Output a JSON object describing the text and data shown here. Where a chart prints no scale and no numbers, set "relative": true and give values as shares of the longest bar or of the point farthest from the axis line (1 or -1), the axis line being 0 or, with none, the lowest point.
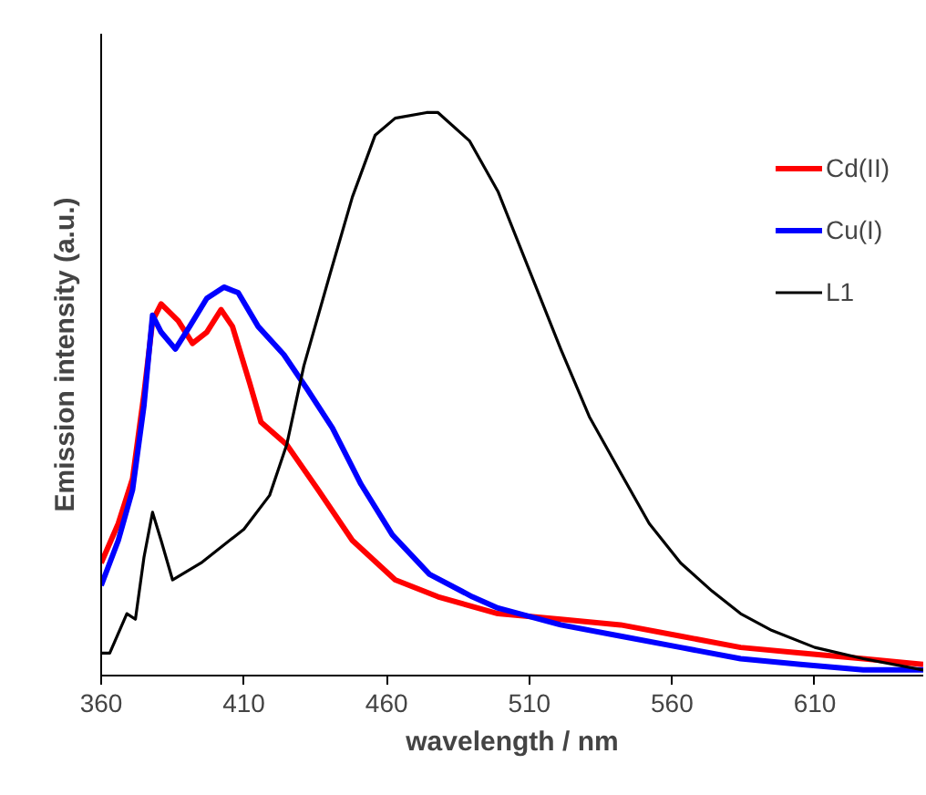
{
  "chart_data": {
    "type": "line",
    "xlabel": "wavelength / nm",
    "ylabel": "Emission intensity (a.u.)",
    "relative": true,
    "xlim": [
      360,
      648
    ],
    "xticks": [
      360,
      410,
      460,
      510,
      560,
      610
    ],
    "legend": "right",
    "grid": false,
    "marker": "none",
    "line_style": "solid",
    "series": [
      {
        "name": "Cd(II)",
        "color": "#ff0000",
        "x": [
          360,
          366,
          371,
          375,
          378,
          381,
          387,
          392,
          397,
          402,
          406,
          412,
          416,
          425,
          436,
          448,
          463,
          478,
          499,
          521,
          542,
          563,
          584,
          605,
          627,
          648
        ],
        "values": [
          0.2,
          0.27,
          0.35,
          0.5,
          0.63,
          0.66,
          0.63,
          0.59,
          0.61,
          0.65,
          0.62,
          0.52,
          0.45,
          0.41,
          0.33,
          0.24,
          0.17,
          0.14,
          0.11,
          0.1,
          0.09,
          0.07,
          0.05,
          0.04,
          0.03,
          0.02
        ]
      },
      {
        "name": "Cu(I)",
        "color": "#0000ff",
        "x": [
          360,
          366,
          371,
          375,
          378,
          381,
          386,
          391,
          397,
          403,
          408,
          415,
          424,
          432,
          441,
          451,
          462,
          475,
          490,
          499,
          521,
          542,
          563,
          584,
          605,
          627,
          648
        ],
        "values": [
          0.16,
          0.24,
          0.33,
          0.48,
          0.64,
          0.61,
          0.58,
          0.62,
          0.67,
          0.69,
          0.68,
          0.62,
          0.57,
          0.51,
          0.44,
          0.34,
          0.25,
          0.18,
          0.14,
          0.12,
          0.09,
          0.07,
          0.05,
          0.03,
          0.02,
          0.01,
          0.01
        ]
      },
      {
        "name": "L1",
        "color": "#000000",
        "x": [
          360,
          363,
          369,
          372,
          375,
          378,
          381,
          385,
          395,
          410,
          419,
          425,
          431,
          440,
          448,
          456,
          463,
          474,
          478,
          489,
          499,
          510,
          521,
          531,
          542,
          552,
          563,
          574,
          584,
          595,
          610,
          627,
          648
        ],
        "values": [
          0.04,
          0.04,
          0.11,
          0.1,
          0.21,
          0.29,
          0.24,
          0.17,
          0.2,
          0.26,
          0.32,
          0.41,
          0.55,
          0.71,
          0.85,
          0.96,
          0.99,
          1.0,
          1.0,
          0.95,
          0.86,
          0.72,
          0.58,
          0.46,
          0.36,
          0.27,
          0.2,
          0.15,
          0.11,
          0.08,
          0.05,
          0.03,
          0.01
        ]
      }
    ]
  }
}
